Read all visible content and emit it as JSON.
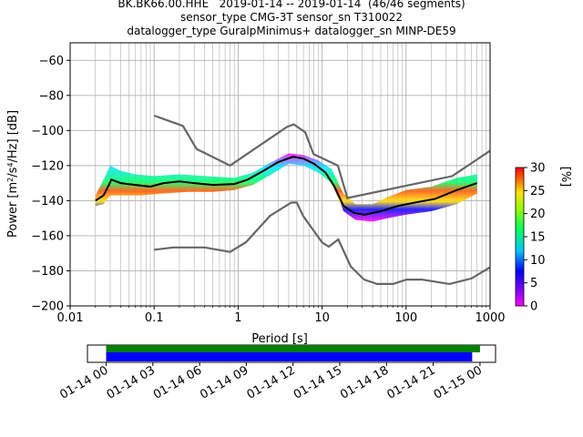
{
  "chart_data": {
    "type": "heatmap",
    "title_lines": [
      "BK.BK66.00.HHE   2019-01-14 -- 2019-01-14  (46/46 segments)",
      "sensor_type CMG-3T sensor_sn T310022",
      "datalogger_type GuralpMinimus+ datalogger_sn MINP-DE59"
    ],
    "xlabel": "Period [s]",
    "ylabel_html": "Power [m<tspan baseline-shift='super' font-size='8'>2</tspan>/s<tspan baseline-shift='super' font-size='8'>4</tspan>/Hz] [dB]",
    "x_scale": "log",
    "xlim": [
      0.01,
      1000
    ],
    "ylim": [
      -200,
      -50
    ],
    "x_ticks": [
      {
        "value": 0.01,
        "label": "0.01"
      },
      {
        "value": 0.1,
        "label": "0.1"
      },
      {
        "value": 1,
        "label": "1"
      },
      {
        "value": 10,
        "label": "10"
      },
      {
        "value": 100,
        "label": "100"
      },
      {
        "value": 1000,
        "label": "1000"
      }
    ],
    "y_ticks": [
      {
        "value": -60,
        "label": "−60"
      },
      {
        "value": -80,
        "label": "−80"
      },
      {
        "value": -100,
        "label": "−100"
      },
      {
        "value": -120,
        "label": "−120"
      },
      {
        "value": -140,
        "label": "−140"
      },
      {
        "value": -160,
        "label": "−160"
      },
      {
        "value": -180,
        "label": "−180"
      },
      {
        "value": -200,
        "label": "−200"
      }
    ],
    "grid": true,
    "colorbar": {
      "label": "[%]",
      "range": [
        0,
        30
      ],
      "ticks": [
        {
          "value": 0,
          "label": "0"
        },
        {
          "value": 5,
          "label": "5"
        },
        {
          "value": 10,
          "label": "10"
        },
        {
          "value": 15,
          "label": "15"
        },
        {
          "value": 20,
          "label": "20"
        },
        {
          "value": 25,
          "label": "25"
        },
        {
          "value": 30,
          "label": "30"
        }
      ]
    },
    "noise_model_color": "#666666",
    "high_noise_model": [
      [
        0.1,
        -91.5
      ],
      [
        0.22,
        -97.4
      ],
      [
        0.32,
        -110.5
      ],
      [
        0.8,
        -120
      ],
      [
        3.8,
        -98
      ],
      [
        4.6,
        -96.5
      ],
      [
        6.3,
        -101
      ],
      [
        7.9,
        -113.5
      ],
      [
        15.4,
        -120
      ],
      [
        20,
        -138.5
      ],
      [
        354.8,
        -126
      ],
      [
        1000,
        -111.5
      ]
    ],
    "low_noise_model": [
      [
        0.1,
        -168
      ],
      [
        0.17,
        -166.7
      ],
      [
        0.4,
        -166.7
      ],
      [
        0.8,
        -169.2
      ],
      [
        1.24,
        -163.7
      ],
      [
        2.4,
        -148.6
      ],
      [
        4.3,
        -141.1
      ],
      [
        5,
        -141.1
      ],
      [
        6,
        -149
      ],
      [
        10,
        -163.8
      ],
      [
        12,
        -166.2
      ],
      [
        15.6,
        -162.1
      ],
      [
        21.9,
        -177.5
      ],
      [
        31.6,
        -185
      ],
      [
        45,
        -187.5
      ],
      [
        70,
        -187.5
      ],
      [
        101,
        -185
      ],
      [
        154,
        -185
      ],
      [
        328,
        -187.5
      ],
      [
        600,
        -184.4
      ],
      [
        1000,
        -178
      ]
    ],
    "mode_line": [
      [
        0.02,
        -140
      ],
      [
        0.025,
        -137
      ],
      [
        0.029,
        -131
      ],
      [
        0.031,
        -128
      ],
      [
        0.04,
        -130
      ],
      [
        0.06,
        -131
      ],
      [
        0.09,
        -132
      ],
      [
        0.13,
        -130
      ],
      [
        0.2,
        -129
      ],
      [
        0.3,
        -130
      ],
      [
        0.5,
        -131
      ],
      [
        0.9,
        -130.5
      ],
      [
        1.3,
        -128
      ],
      [
        2,
        -123
      ],
      [
        3,
        -118
      ],
      [
        4.5,
        -115
      ],
      [
        6,
        -116
      ],
      [
        8,
        -119
      ],
      [
        11,
        -124
      ],
      [
        14,
        -132
      ],
      [
        18,
        -143
      ],
      [
        24,
        -147
      ],
      [
        32,
        -148
      ],
      [
        50,
        -146
      ],
      [
        80,
        -143
      ],
      [
        130,
        -141
      ],
      [
        220,
        -139
      ],
      [
        400,
        -134
      ],
      [
        700,
        -130
      ]
    ],
    "psd_band": {
      "upper": [
        [
          0.02,
          -137
        ],
        [
          0.025,
          -128
        ],
        [
          0.03,
          -120
        ],
        [
          0.04,
          -123
        ],
        [
          0.06,
          -125
        ],
        [
          0.1,
          -126
        ],
        [
          0.2,
          -125
        ],
        [
          0.4,
          -126
        ],
        [
          0.9,
          -127
        ],
        [
          1.5,
          -124
        ],
        [
          2.5,
          -118
        ],
        [
          4,
          -113
        ],
        [
          6,
          -114
        ],
        [
          9,
          -117
        ],
        [
          13,
          -122
        ],
        [
          18,
          -136
        ],
        [
          25,
          -142
        ],
        [
          40,
          -142
        ],
        [
          60,
          -138
        ],
        [
          100,
          -134
        ],
        [
          200,
          -132
        ],
        [
          400,
          -127
        ],
        [
          700,
          -125
        ]
      ],
      "lower": [
        [
          0.02,
          -143
        ],
        [
          0.025,
          -142
        ],
        [
          0.03,
          -137
        ],
        [
          0.04,
          -137
        ],
        [
          0.07,
          -137
        ],
        [
          0.12,
          -136
        ],
        [
          0.25,
          -135
        ],
        [
          0.5,
          -135
        ],
        [
          0.9,
          -134
        ],
        [
          1.5,
          -131
        ],
        [
          2.5,
          -125
        ],
        [
          4,
          -119
        ],
        [
          6,
          -120
        ],
        [
          9,
          -124
        ],
        [
          13,
          -130
        ],
        [
          18,
          -146
        ],
        [
          25,
          -151
        ],
        [
          40,
          -152
        ],
        [
          60,
          -150
        ],
        [
          100,
          -148
        ],
        [
          200,
          -146
        ],
        [
          400,
          -142
        ],
        [
          700,
          -136
        ]
      ]
    },
    "timeline": {
      "ticks": [
        {
          "value": 0,
          "label": "01-14 00"
        },
        {
          "value": 3,
          "label": "01-14 03"
        },
        {
          "value": 6,
          "label": "01-14 06"
        },
        {
          "value": 9,
          "label": "01-14 09"
        },
        {
          "value": 12,
          "label": "01-14 12"
        },
        {
          "value": 15,
          "label": "01-14 15"
        },
        {
          "value": 18,
          "label": "01-14 18"
        },
        {
          "value": 21,
          "label": "01-14 21"
        },
        {
          "value": 24,
          "label": "01-15 00"
        }
      ],
      "range_hours": [
        -1.2,
        25.0
      ],
      "data_bar": {
        "start": 0,
        "end": 24.0,
        "color": "#008000"
      },
      "psd_bar": {
        "start": 0,
        "end": 23.5,
        "color": "#0000ff"
      }
    }
  }
}
